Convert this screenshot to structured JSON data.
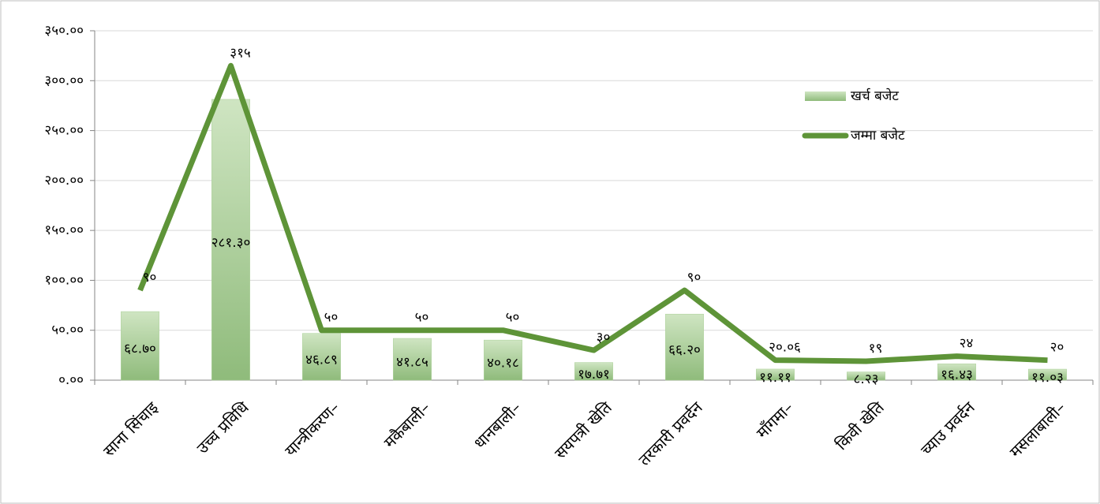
{
  "chart_data": {
    "type": "bar_line",
    "categories": [
      "साना सिंचाइ",
      "उच्च प्रविधि",
      "यान्त्रीकरण–",
      "मकैबाली–",
      "धानबाली–",
      "सयपत्री खेति",
      "तरकारी प्रवर्दन",
      "माँगमा–",
      "किवी खेति",
      "च्याउ प्रवर्दन",
      "मसलाबाली–"
    ],
    "series": [
      {
        "name": "खर्च बजेट",
        "type": "bar",
        "color": "#a9cf96",
        "values": [
          68.7,
          281.3,
          46.89,
          41.85,
          40.18,
          17.71,
          66.2,
          11.11,
          8.23,
          16.43,
          11.03
        ],
        "value_labels": [
          "६८.७०",
          "२८१.३०",
          "४६.८९",
          "४१.८५",
          "४०.१८",
          "१७.७१",
          "६६.२०",
          "११.११",
          "८.२३",
          "१६.४३",
          "११.०३"
        ]
      },
      {
        "name": "जम्मा बजेट",
        "type": "line",
        "color": "#5e9438",
        "values": [
          90,
          315,
          50,
          50,
          50,
          30,
          90,
          20.06,
          19,
          24,
          20
        ],
        "value_labels": [
          "९०",
          "३१५",
          "५०",
          "५०",
          "५०",
          "३०",
          "९०",
          "२०.०६",
          "१९",
          "२४",
          "२०"
        ]
      }
    ],
    "ylim": [
      0,
      350
    ],
    "yticks": [
      {
        "value": 0,
        "label": "०.००"
      },
      {
        "value": 50,
        "label": "५०.००"
      },
      {
        "value": 100,
        "label": "१००.००"
      },
      {
        "value": 150,
        "label": "१५०.००"
      },
      {
        "value": 200,
        "label": "२००.००"
      },
      {
        "value": 250,
        "label": "२५०.००"
      },
      {
        "value": 300,
        "label": "३००.००"
      },
      {
        "value": 350,
        "label": "३५०.००"
      }
    ],
    "grid": true,
    "legend": "upper right"
  }
}
